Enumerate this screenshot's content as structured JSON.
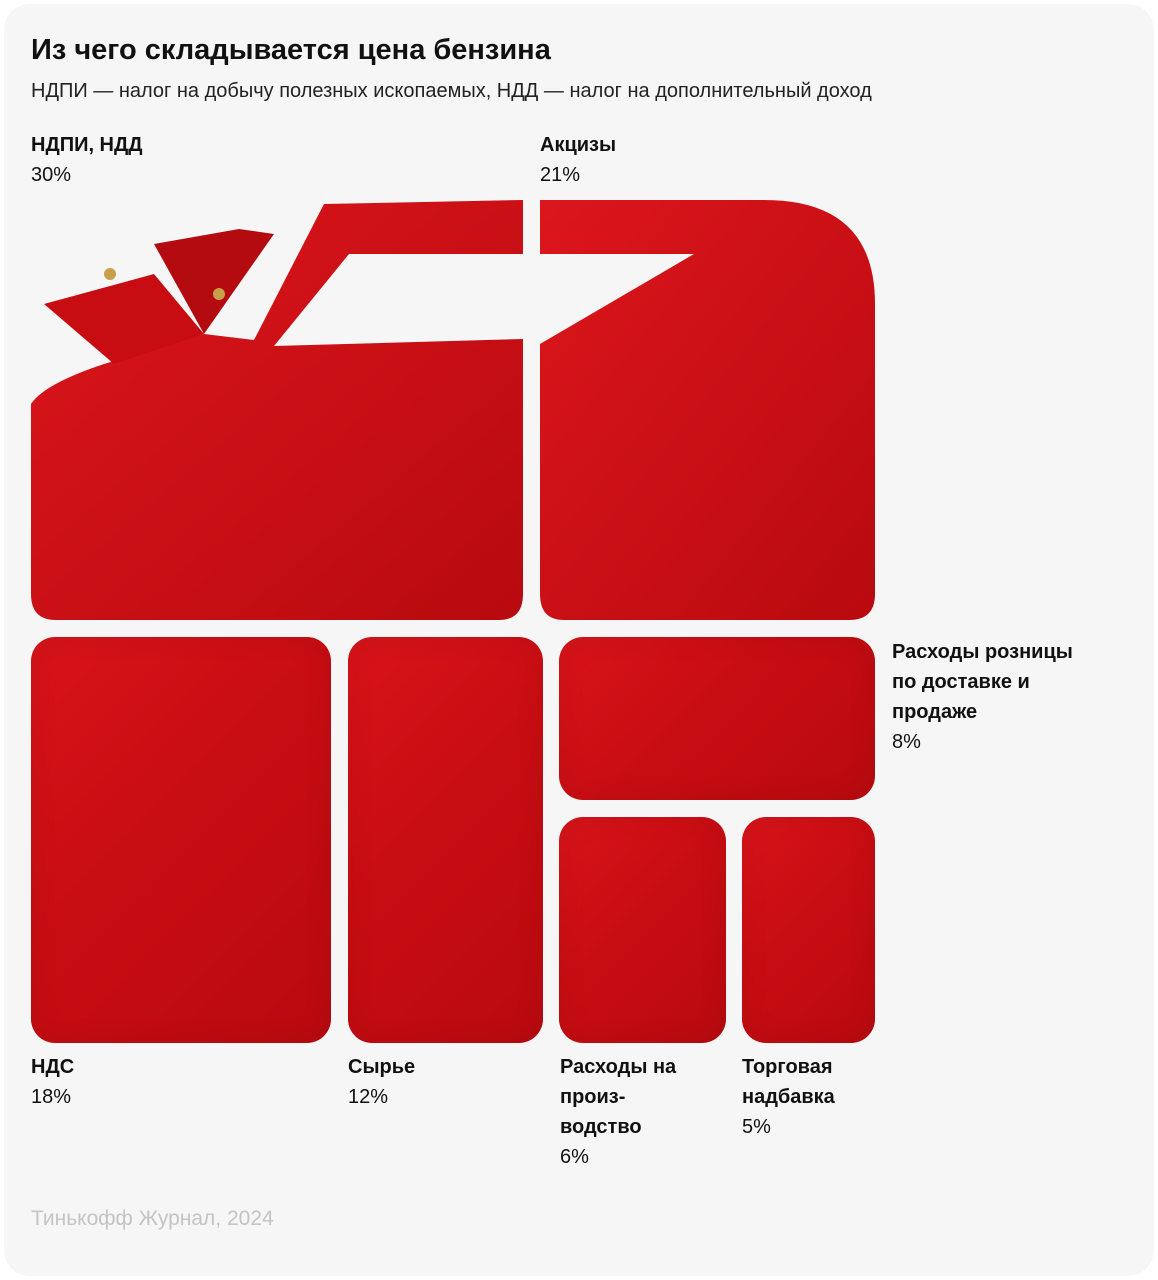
{
  "title": "Из чего складывается цена бензина",
  "subtitle": "НДПИ —  налог на добычу полезных ископаемых, НДД — налог на дополнительный доход",
  "footer": "Тинькофф Журнал, 2024",
  "chart_data": {
    "type": "treemap",
    "title": "Из чего складывается цена бензина",
    "unit": "%",
    "colors": {
      "tile": "#c90e13",
      "background": "#f6f6f6"
    },
    "items": [
      {
        "label": "НДПИ, НДД",
        "value": 30,
        "value_label": "30%"
      },
      {
        "label": "Акцизы",
        "value": 21,
        "value_label": "21%"
      },
      {
        "label": "НДС",
        "value": 18,
        "value_label": "18%"
      },
      {
        "label": "Сырье",
        "value": 12,
        "value_label": "12%"
      },
      {
        "label": "Расходы розницы по доставке и продаже",
        "value": 8,
        "value_label": "8%"
      },
      {
        "label": "Расходы на произ-водство",
        "value": 6,
        "value_label": "6%"
      },
      {
        "label": "Торговая надбавка",
        "value": 5,
        "value_label": "5%"
      }
    ]
  }
}
